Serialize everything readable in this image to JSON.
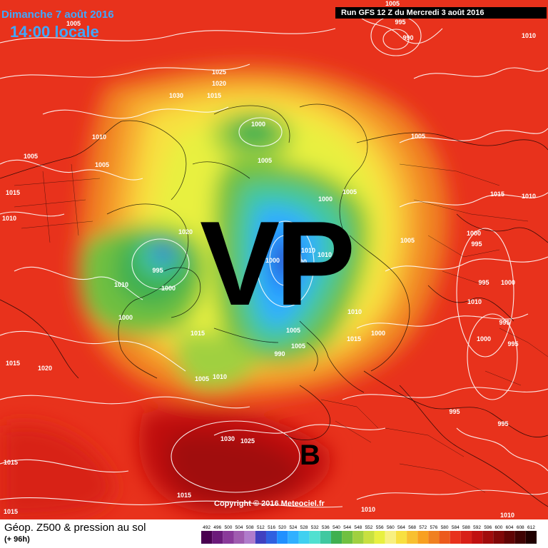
{
  "header": {
    "date_label": "Dimanche 7 août 2016",
    "time_label": "14:00 locale",
    "run_label": "Run GFS 12 Z du Mercredi 3 août 2016"
  },
  "annotations": {
    "vortex_label": "VP",
    "low_label": "B"
  },
  "copyright": "Copyright © 2016 Meteociel.fr",
  "legend": {
    "title": "Géop. Z500 & pression au sol",
    "subtitle": "(+ 96h)",
    "scale_values": [
      "492",
      "496",
      "500",
      "504",
      "508",
      "512",
      "516",
      "520",
      "524",
      "528",
      "532",
      "536",
      "540",
      "544",
      "548",
      "552",
      "556",
      "560",
      "564",
      "568",
      "572",
      "576",
      "580",
      "584",
      "588",
      "592",
      "596",
      "600",
      "604",
      "608",
      "612"
    ],
    "scale_colors": [
      "#4a0050",
      "#6b1a7a",
      "#8a3a9a",
      "#a05cb0",
      "#b07ccc",
      "#4040c0",
      "#3060e0",
      "#2090ff",
      "#30b0ff",
      "#40d0f0",
      "#50e0d0",
      "#40c8a0",
      "#40b050",
      "#70c040",
      "#a0d040",
      "#c8e040",
      "#e8f040",
      "#f8f080",
      "#f8e040",
      "#f8c030",
      "#f8a020",
      "#f08020",
      "#ec5a1c",
      "#e8321c",
      "#d82018",
      "#c01010",
      "#a00c0c",
      "#800808",
      "#600404",
      "#400202",
      "#200000"
    ]
  },
  "pressure_labels": [
    {
      "text": "1005"
    },
    {
      "text": "995"
    },
    {
      "text": "990"
    },
    {
      "text": "1005"
    },
    {
      "text": "1010"
    },
    {
      "text": "1025"
    },
    {
      "text": "1020"
    },
    {
      "text": "1030"
    },
    {
      "text": "1015"
    },
    {
      "text": "1000"
    },
    {
      "text": "1010"
    },
    {
      "text": "1005"
    },
    {
      "text": "1005"
    },
    {
      "text": "1005"
    },
    {
      "text": "1015"
    },
    {
      "text": "1010"
    },
    {
      "text": "1005"
    },
    {
      "text": "1015"
    },
    {
      "text": "1010"
    },
    {
      "text": "1000"
    },
    {
      "text": "1005"
    },
    {
      "text": "1020"
    },
    {
      "text": "1005"
    },
    {
      "text": "1000"
    },
    {
      "text": "995"
    },
    {
      "text": "1010"
    },
    {
      "text": "1000"
    },
    {
      "text": "1000"
    },
    {
      "text": "1000"
    },
    {
      "text": "1010"
    },
    {
      "text": "995"
    },
    {
      "text": "1000"
    },
    {
      "text": "1010"
    },
    {
      "text": "995"
    },
    {
      "text": "1005"
    },
    {
      "text": "1015"
    },
    {
      "text": "1005"
    },
    {
      "text": "1015"
    },
    {
      "text": "1000"
    },
    {
      "text": "990"
    },
    {
      "text": "1000"
    },
    {
      "text": "1015"
    },
    {
      "text": "1020"
    },
    {
      "text": "1010"
    },
    {
      "text": "1005"
    },
    {
      "text": "1010"
    },
    {
      "text": "995"
    },
    {
      "text": "995"
    },
    {
      "text": "1000"
    },
    {
      "text": "995"
    },
    {
      "text": "995"
    },
    {
      "text": "1015"
    },
    {
      "text": "1030"
    },
    {
      "text": "1025"
    },
    {
      "text": "1015"
    },
    {
      "text": "1015"
    },
    {
      "text": "1010"
    },
    {
      "text": "1010"
    },
    {
      "text": "1010"
    }
  ]
}
